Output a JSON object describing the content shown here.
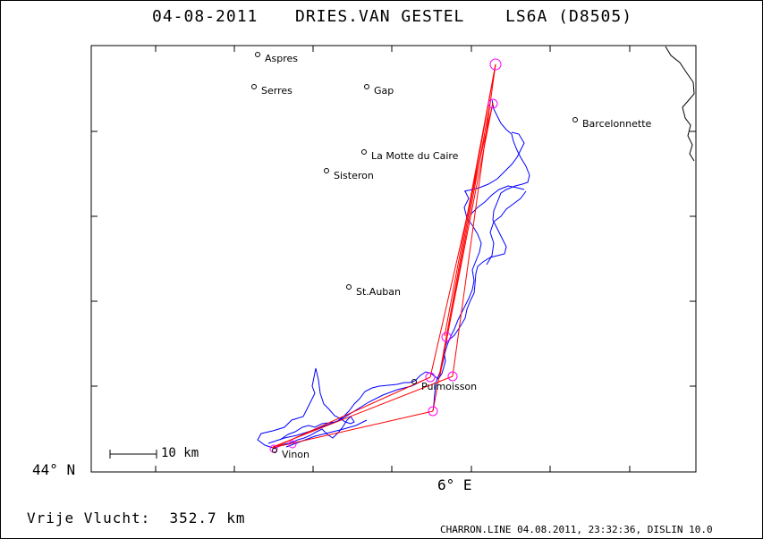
{
  "header": {
    "date": "04-08-2011",
    "pilot": "DRIES.VAN GESTEL",
    "glider": "LS6A (D8505)"
  },
  "map": {
    "lat_label": "44° N",
    "lon_label": "6° E",
    "scale_label": "10 km",
    "track_color": "#0000ff",
    "task_color": "#ff0000",
    "turnpoint_color": "#ff00ff",
    "towns": [
      {
        "name": "Aspres"
      },
      {
        "name": "Serres"
      },
      {
        "name": "Gap"
      },
      {
        "name": "Barcelonnette"
      },
      {
        "name": "La Motte du Caire"
      },
      {
        "name": "Sisteron"
      },
      {
        "name": "St.Auban"
      },
      {
        "name": "Puimoisson"
      },
      {
        "name": "Vinon"
      }
    ]
  },
  "footer": {
    "distance_caption": "Vrije Vlucht:",
    "distance_value": "352.7 km",
    "credit": "CHARRON.LINE 04.08.2011, 23:32:36, DISLIN 10.0"
  }
}
